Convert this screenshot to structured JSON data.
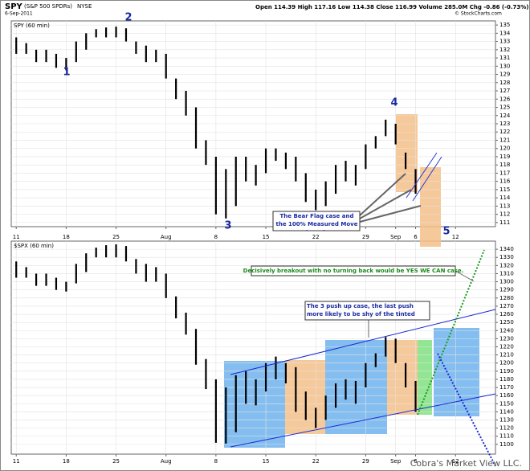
{
  "header": {
    "symbol": "SPY",
    "name": "(S&P 500 SPDRs)",
    "exchange": "NYSE",
    "date": "6-Sep-2011",
    "quote": "Open 114.39  High 117.16  Low 114.38  Close 116.99  Volume 285.0M  Chg -0.86 (-0.73%)",
    "source": "© StockCharts.com",
    "watermark": "Cobra's Market View LLC."
  },
  "annotations": {
    "wave1": "1",
    "wave2": "2",
    "wave3": "3",
    "wave4": "4",
    "wave5": "5",
    "bear_flag": "The Bear Flag case and the 100% Measured Move target.",
    "breakout": "Decisively breakout with no turning back would be YES WE CAN case.",
    "three_push": "The 3 push up case, the last push more likely to be shy of the tinted area target."
  },
  "chart_data": [
    {
      "type": "range",
      "title": "SPY (60 min)",
      "color": "#000000",
      "x": [
        0,
        1,
        2,
        3,
        4,
        5,
        6,
        7,
        8,
        9,
        10,
        11,
        12,
        13,
        14,
        15,
        16,
        17,
        18,
        19,
        20,
        21,
        22,
        23,
        24,
        25,
        26,
        27,
        28,
        29,
        30,
        31,
        32,
        33,
        34,
        35,
        36,
        37,
        38,
        39,
        40
      ],
      "high": [
        133.5,
        132.8,
        132,
        132,
        131.5,
        131,
        133,
        134,
        134.5,
        134.7,
        134.8,
        134.6,
        133,
        132.5,
        132,
        131.5,
        128.5,
        127,
        125,
        121,
        119,
        117.5,
        119,
        119,
        118,
        120,
        120,
        119.5,
        119,
        117,
        115,
        116,
        118,
        118.5,
        118,
        120.5,
        121.5,
        123.5,
        123,
        119.5,
        117.5
      ],
      "low": [
        131.5,
        131.5,
        130.5,
        130.5,
        129.8,
        129.5,
        130.5,
        132,
        133.5,
        133.5,
        133.5,
        133,
        131.5,
        130.5,
        130.5,
        128.5,
        126,
        124,
        120,
        118,
        112,
        111.5,
        113,
        116,
        115.5,
        117,
        118.5,
        117.5,
        116,
        113.5,
        112.5,
        113,
        114.5,
        116,
        115.5,
        117.5,
        120,
        121.5,
        120.5,
        117.5,
        114.5
      ],
      "xlim": [
        -0.5,
        48
      ],
      "xticks": [
        {
          "value": 0,
          "label": "11"
        },
        {
          "value": 5,
          "label": "18"
        },
        {
          "value": 10,
          "label": "25"
        },
        {
          "value": 15,
          "label": "Aug"
        },
        {
          "value": 20,
          "label": "8"
        },
        {
          "value": 25,
          "label": "15"
        },
        {
          "value": 30,
          "label": "22"
        },
        {
          "value": 35,
          "label": "29"
        },
        {
          "value": 38,
          "label": "Sep"
        },
        {
          "value": 40,
          "label": "6"
        },
        {
          "value": 44,
          "label": "12"
        }
      ],
      "ylim": [
        110.5,
        135.5
      ],
      "yticks": [
        111,
        112,
        113,
        114,
        115,
        116,
        117,
        118,
        119,
        120,
        121,
        122,
        123,
        124,
        125,
        126,
        127,
        128,
        129,
        130,
        131,
        132,
        133,
        134,
        135
      ],
      "grid": true
    },
    {
      "type": "range",
      "title": "$SPX (60 min)",
      "color": "#000000",
      "x": [
        0,
        1,
        2,
        3,
        4,
        5,
        6,
        7,
        8,
        9,
        10,
        11,
        12,
        13,
        14,
        15,
        16,
        17,
        18,
        19,
        20,
        21,
        22,
        23,
        24,
        25,
        26,
        27,
        28,
        29,
        30,
        31,
        32,
        33,
        34,
        35,
        36,
        37,
        38,
        39,
        40
      ],
      "high": [
        1325,
        1318,
        1310,
        1310,
        1305,
        1300,
        1322,
        1335,
        1342,
        1345,
        1346,
        1344,
        1328,
        1322,
        1318,
        1310,
        1282,
        1262,
        1242,
        1205,
        1180,
        1170,
        1185,
        1190,
        1180,
        1200,
        1208,
        1200,
        1195,
        1165,
        1145,
        1160,
        1175,
        1180,
        1178,
        1200,
        1212,
        1232,
        1230,
        1200,
        1178
      ],
      "low": [
        1305,
        1305,
        1295,
        1295,
        1290,
        1288,
        1298,
        1312,
        1330,
        1330,
        1330,
        1325,
        1310,
        1300,
        1300,
        1280,
        1255,
        1235,
        1198,
        1168,
        1102,
        1101,
        1115,
        1150,
        1148,
        1165,
        1180,
        1175,
        1140,
        1130,
        1120,
        1130,
        1145,
        1155,
        1150,
        1170,
        1195,
        1208,
        1200,
        1170,
        1140
      ],
      "xlim": [
        -0.5,
        48
      ],
      "xticks": [
        {
          "value": 0,
          "label": "11"
        },
        {
          "value": 5,
          "label": "18"
        },
        {
          "value": 10,
          "label": "25"
        },
        {
          "value": 15,
          "label": "Aug"
        },
        {
          "value": 20,
          "label": "8"
        },
        {
          "value": 25,
          "label": "15"
        },
        {
          "value": 30,
          "label": "22"
        },
        {
          "value": 35,
          "label": "29"
        },
        {
          "value": 38,
          "label": "Sep"
        },
        {
          "value": 40,
          "label": "6"
        },
        {
          "value": 44,
          "label": "12"
        }
      ],
      "ylim": [
        1088,
        1350
      ],
      "yticks": [
        1100,
        1110,
        1120,
        1130,
        1140,
        1150,
        1160,
        1170,
        1180,
        1190,
        1200,
        1210,
        1220,
        1230,
        1240,
        1250,
        1260,
        1270,
        1280,
        1290,
        1300,
        1310,
        1320,
        1330,
        1340
      ],
      "grid": true
    }
  ]
}
